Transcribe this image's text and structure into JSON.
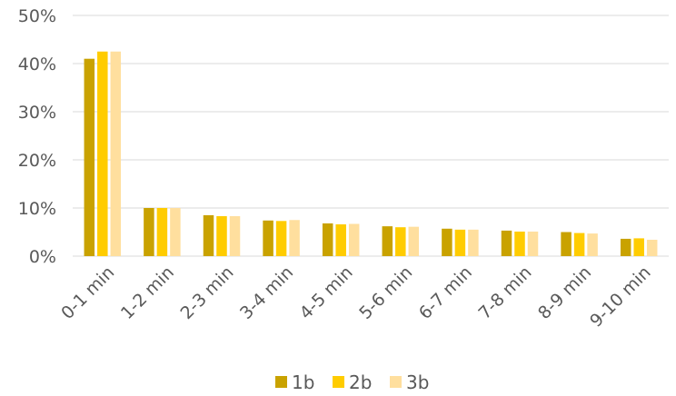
{
  "chart_data": {
    "type": "bar",
    "title": "",
    "xlabel": "",
    "ylabel": "",
    "categories": [
      "0-1 min",
      "1-2 min",
      "2-3 min",
      "3-4 min",
      "4-5 min",
      "5-6 min",
      "6-7 min",
      "7-8 min",
      "8-9 min",
      "9-10 min"
    ],
    "series": [
      {
        "name": "1b",
        "color": "#C9A200",
        "values": [
          41.0,
          10.0,
          8.5,
          7.4,
          6.8,
          6.2,
          5.7,
          5.3,
          5.0,
          3.6
        ]
      },
      {
        "name": "2b",
        "color": "#FFCC00",
        "values": [
          42.5,
          10.0,
          8.3,
          7.3,
          6.6,
          6.0,
          5.5,
          5.1,
          4.8,
          3.7
        ]
      },
      {
        "name": "3b",
        "color": "#FFDF9E",
        "values": [
          42.5,
          10.0,
          8.3,
          7.5,
          6.7,
          6.1,
          5.5,
          5.1,
          4.7,
          3.4
        ]
      }
    ],
    "ylim": [
      0,
      50
    ],
    "yticks": [
      0,
      10,
      20,
      30,
      40,
      50
    ],
    "ytick_labels": [
      "0%",
      "10%",
      "20%",
      "30%",
      "40%",
      "50%"
    ],
    "grid": true,
    "gridline_color": "#D9D9D9",
    "legend_position": "bottom"
  }
}
